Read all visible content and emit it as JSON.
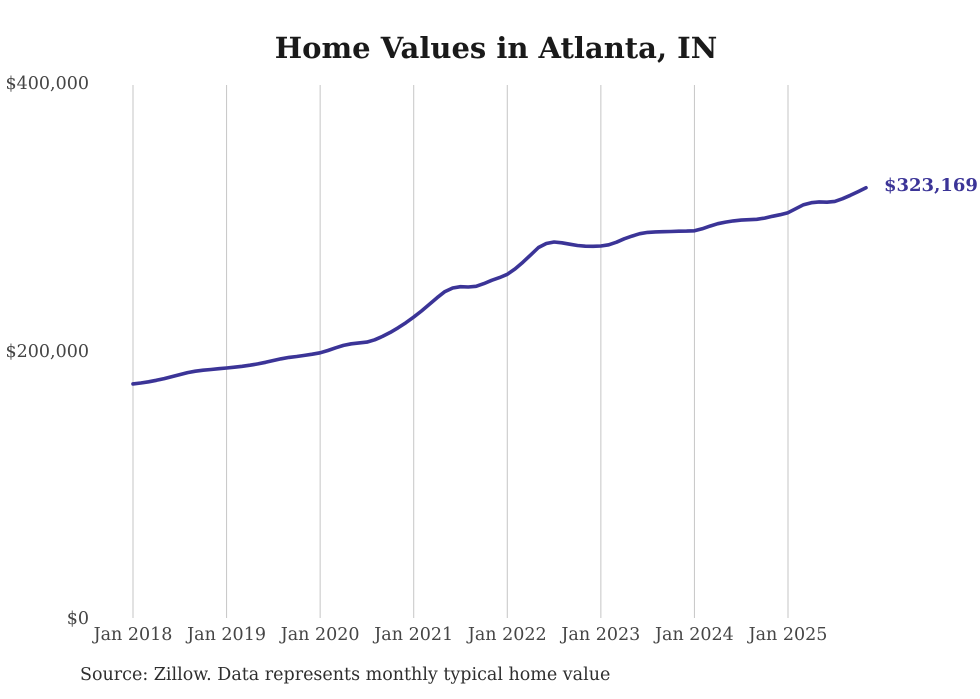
{
  "title": "Home Values in Atlanta, IN",
  "source": "Source: Zillow. Data represents monthly typical home value",
  "colors": {
    "line": "#3b3497",
    "end_label": "#3b3497",
    "grid": "#c6c6c6",
    "title_text": "#1a1a1a",
    "axis_text": "#454545",
    "source_text": "#2e2e2e",
    "background": "#ffffff"
  },
  "chart_data": {
    "type": "line",
    "title": "Home Values in Atlanta, IN",
    "series_name": "Monthly typical home value",
    "unit": "USD",
    "grid": "vertical-only",
    "legend": "none",
    "ylim": [
      0,
      400000
    ],
    "y_tick_values": [
      0,
      200000,
      400000
    ],
    "y_tick_labels": [
      "$0",
      "$200,000",
      "$400,000"
    ],
    "x_tick_labels": [
      "Jan 2018",
      "Jan 2019",
      "Jan 2020",
      "Jan 2021",
      "Jan 2022",
      "Jan 2023",
      "Jan 2024",
      "Jan 2025"
    ],
    "x_tick_interval_months": 12,
    "end_label": "$323,169",
    "end_value": 323169,
    "x": [
      "2018-01",
      "2018-02",
      "2018-03",
      "2018-04",
      "2018-05",
      "2018-06",
      "2018-07",
      "2018-08",
      "2018-09",
      "2018-10",
      "2018-11",
      "2018-12",
      "2019-01",
      "2019-02",
      "2019-03",
      "2019-04",
      "2019-05",
      "2019-06",
      "2019-07",
      "2019-08",
      "2019-09",
      "2019-10",
      "2019-11",
      "2019-12",
      "2020-01",
      "2020-02",
      "2020-03",
      "2020-04",
      "2020-05",
      "2020-06",
      "2020-07",
      "2020-08",
      "2020-09",
      "2020-10",
      "2020-11",
      "2020-12",
      "2021-01",
      "2021-02",
      "2021-03",
      "2021-04",
      "2021-05",
      "2021-06",
      "2021-07",
      "2021-08",
      "2021-09",
      "2021-10",
      "2021-11",
      "2021-12",
      "2022-01",
      "2022-02",
      "2022-03",
      "2022-04",
      "2022-05",
      "2022-06",
      "2022-07",
      "2022-08",
      "2022-09",
      "2022-10",
      "2022-11",
      "2022-12",
      "2023-01",
      "2023-02",
      "2023-03",
      "2023-04",
      "2023-05",
      "2023-06",
      "2023-07",
      "2023-08",
      "2023-09",
      "2023-10",
      "2023-11",
      "2023-12",
      "2024-01",
      "2024-02",
      "2024-03",
      "2024-04",
      "2024-05",
      "2024-06",
      "2024-07",
      "2024-08",
      "2024-09",
      "2024-10",
      "2024-11",
      "2024-12",
      "2025-01",
      "2025-02",
      "2025-03",
      "2025-04",
      "2025-05",
      "2025-06",
      "2025-07",
      "2025-08",
      "2025-09",
      "2025-10",
      "2025-11"
    ],
    "values": [
      176500,
      177200,
      178100,
      179200,
      180500,
      182000,
      183500,
      185000,
      186000,
      186800,
      187300,
      187900,
      188400,
      189000,
      189700,
      190500,
      191500,
      192700,
      194000,
      195300,
      196300,
      197000,
      197800,
      198700,
      199800,
      201500,
      203500,
      205300,
      206500,
      207200,
      207800,
      209500,
      212000,
      215000,
      218500,
      222300,
      226500,
      231000,
      236000,
      241000,
      245500,
      248200,
      249200,
      249000,
      249500,
      251500,
      254000,
      256000,
      258500,
      262500,
      267500,
      273000,
      278500,
      281500,
      282600,
      282000,
      281000,
      280000,
      279500,
      279400,
      279600,
      280500,
      282500,
      285000,
      287000,
      288800,
      289800,
      290200,
      290300,
      290500,
      290700,
      290800,
      291000,
      292500,
      294500,
      296300,
      297500,
      298400,
      299000,
      299300,
      299600,
      300500,
      301800,
      303000,
      304500,
      307500,
      310500,
      312000,
      312600,
      312400,
      313000,
      315000,
      317500,
      320300,
      323169
    ]
  }
}
